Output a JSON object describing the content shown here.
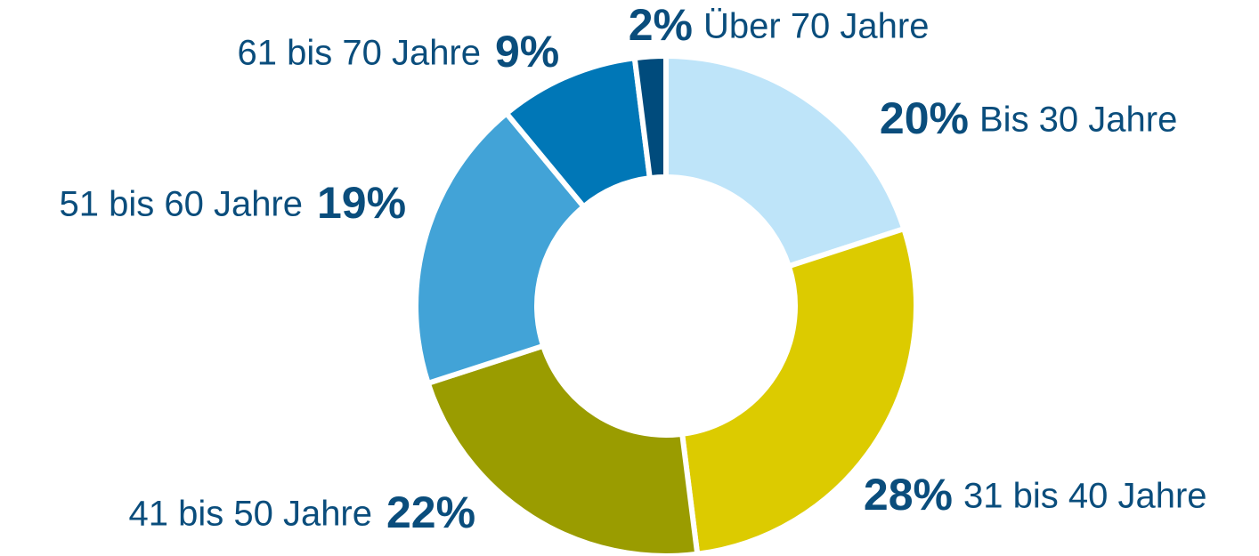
{
  "chart_data": {
    "type": "donut",
    "categories": [
      "Bis 30 Jahre",
      "31 bis 40 Jahre",
      "41 bis 50 Jahre",
      "51 bis 60 Jahre",
      "61 bis 70 Jahre",
      "Über 70 Jahre"
    ],
    "values": [
      20,
      28,
      22,
      19,
      9,
      2
    ],
    "value_labels": [
      "20%",
      "28%",
      "22%",
      "19%",
      "9%",
      "2%"
    ],
    "colors": [
      "#bee4f9",
      "#dccb00",
      "#9a9c00",
      "#42a3d7",
      "#0077b7",
      "#004b7c"
    ]
  }
}
